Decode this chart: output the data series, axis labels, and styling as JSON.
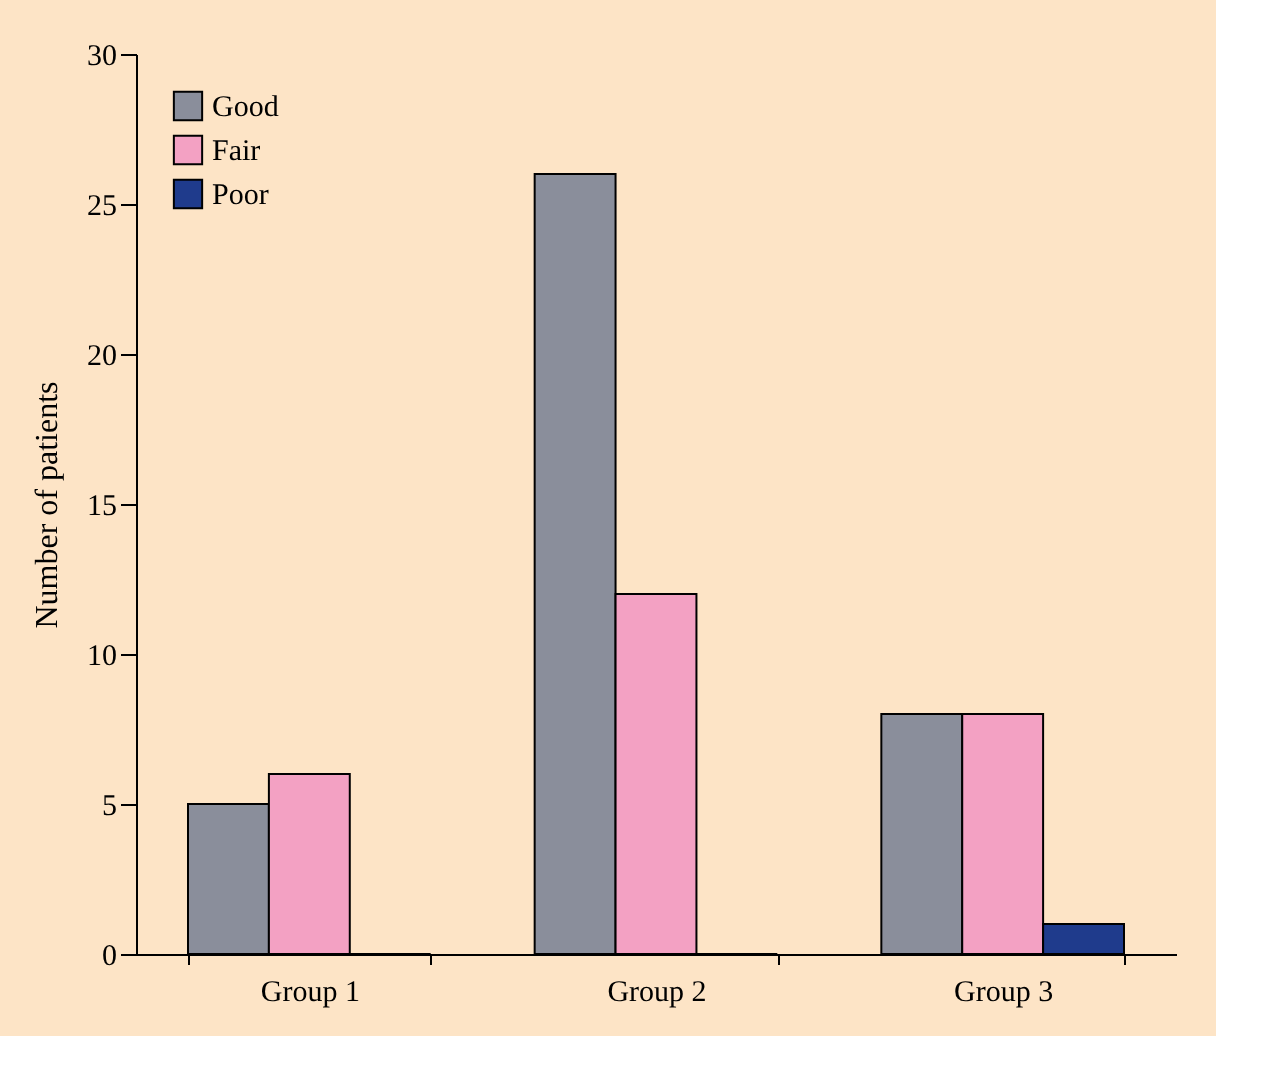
{
  "chart_data": {
    "type": "bar",
    "ylabel": "Number of patients",
    "categories": [
      "Group 1",
      "Group 2",
      "Group 3"
    ],
    "series": [
      {
        "name": "Good",
        "color": "#8a8e9b",
        "values": [
          5,
          26,
          8
        ]
      },
      {
        "name": "Fair",
        "color": "#f3a1c3",
        "values": [
          6,
          12,
          8
        ]
      },
      {
        "name": "Poor",
        "color": "#1f3b8c",
        "values": [
          0,
          0,
          1
        ]
      }
    ],
    "ylim": [
      0,
      30
    ],
    "yticks": [
      0,
      5,
      10,
      15,
      20,
      25,
      30
    ],
    "grid": false,
    "legend": "top left"
  }
}
